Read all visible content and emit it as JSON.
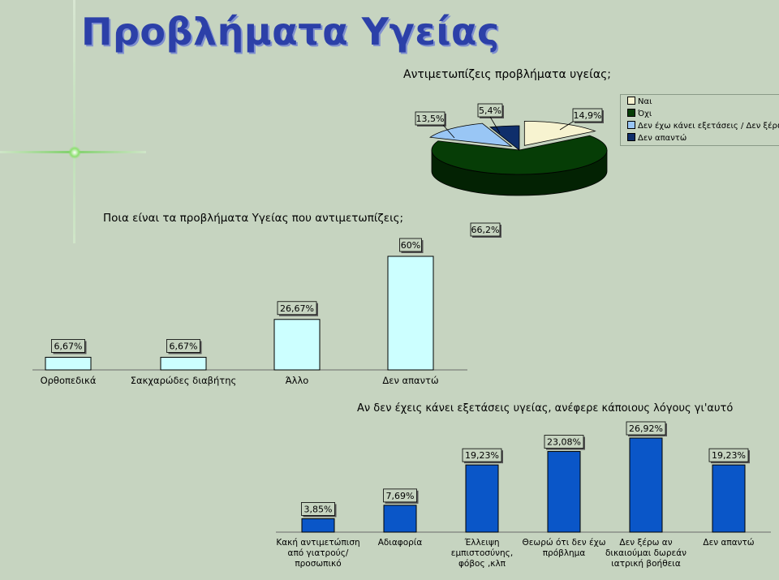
{
  "page": {
    "title": "Προβλήματα Υγείας"
  },
  "chart_data": [
    {
      "type": "pie",
      "title": "Αντιμετωπίζεις προβλήματα υγείας;",
      "slices": [
        {
          "name": "Ναι",
          "value": 14.9,
          "label": "14,9%",
          "color": "#f7f3d0"
        },
        {
          "name": "Όχι",
          "value": 66.2,
          "label": "66,2%",
          "color": "#063d06"
        },
        {
          "name": "Δεν έχω κάνει εξετάσεις / Δεν ξέρω",
          "value": 13.5,
          "label": "13,5%",
          "color": "#99c6f5"
        },
        {
          "name": "Δεν απαντώ",
          "value": 5.4,
          "label": "5,4%",
          "color": "#0f2e6b"
        }
      ],
      "legend": {
        "position": "top-right"
      }
    },
    {
      "type": "bar",
      "title": "Ποια είναι τα προβλήματα Υγείας που αντιμετωπίζεις;",
      "categories": [
        "Ορθοπεδικά",
        "Σακχαρώδες διαβήτης",
        "Άλλο",
        "Δεν απαντώ"
      ],
      "values": [
        6.67,
        6.67,
        26.67,
        60
      ],
      "labels": [
        "6,67%",
        "6,67%",
        "26,67%",
        "60%"
      ],
      "color": "#ccffff",
      "ylim": [
        0,
        60
      ]
    },
    {
      "type": "bar",
      "title": "Αν δεν έχεις κάνει εξετάσεις υγείας, ανέφερε κάποιους λόγους γι'αυτό",
      "categories": [
        [
          "Κακή αντιμετώπιση",
          "από γιατρούς/",
          "προσωπικό"
        ],
        [
          "Αδιαφορία"
        ],
        [
          "Έλλειψη",
          "εμπιστοσύνης,",
          "φόβος ,κλπ"
        ],
        [
          "Θεωρώ ότι δεν έχω",
          "πρόβλημα"
        ],
        [
          "Δεν ξέρω αν",
          "δικαιούμαι δωρεάν",
          "ιατρική βοήθεια"
        ],
        [
          "Δεν απαντώ"
        ]
      ],
      "values": [
        3.85,
        7.69,
        19.23,
        23.08,
        26.92,
        19.23
      ],
      "labels": [
        "3,85%",
        "7,69%",
        "19,23%",
        "23,08%",
        "26,92%",
        "19,23%"
      ],
      "color": "#0a56c8",
      "ylim": [
        0,
        26.92
      ]
    }
  ]
}
